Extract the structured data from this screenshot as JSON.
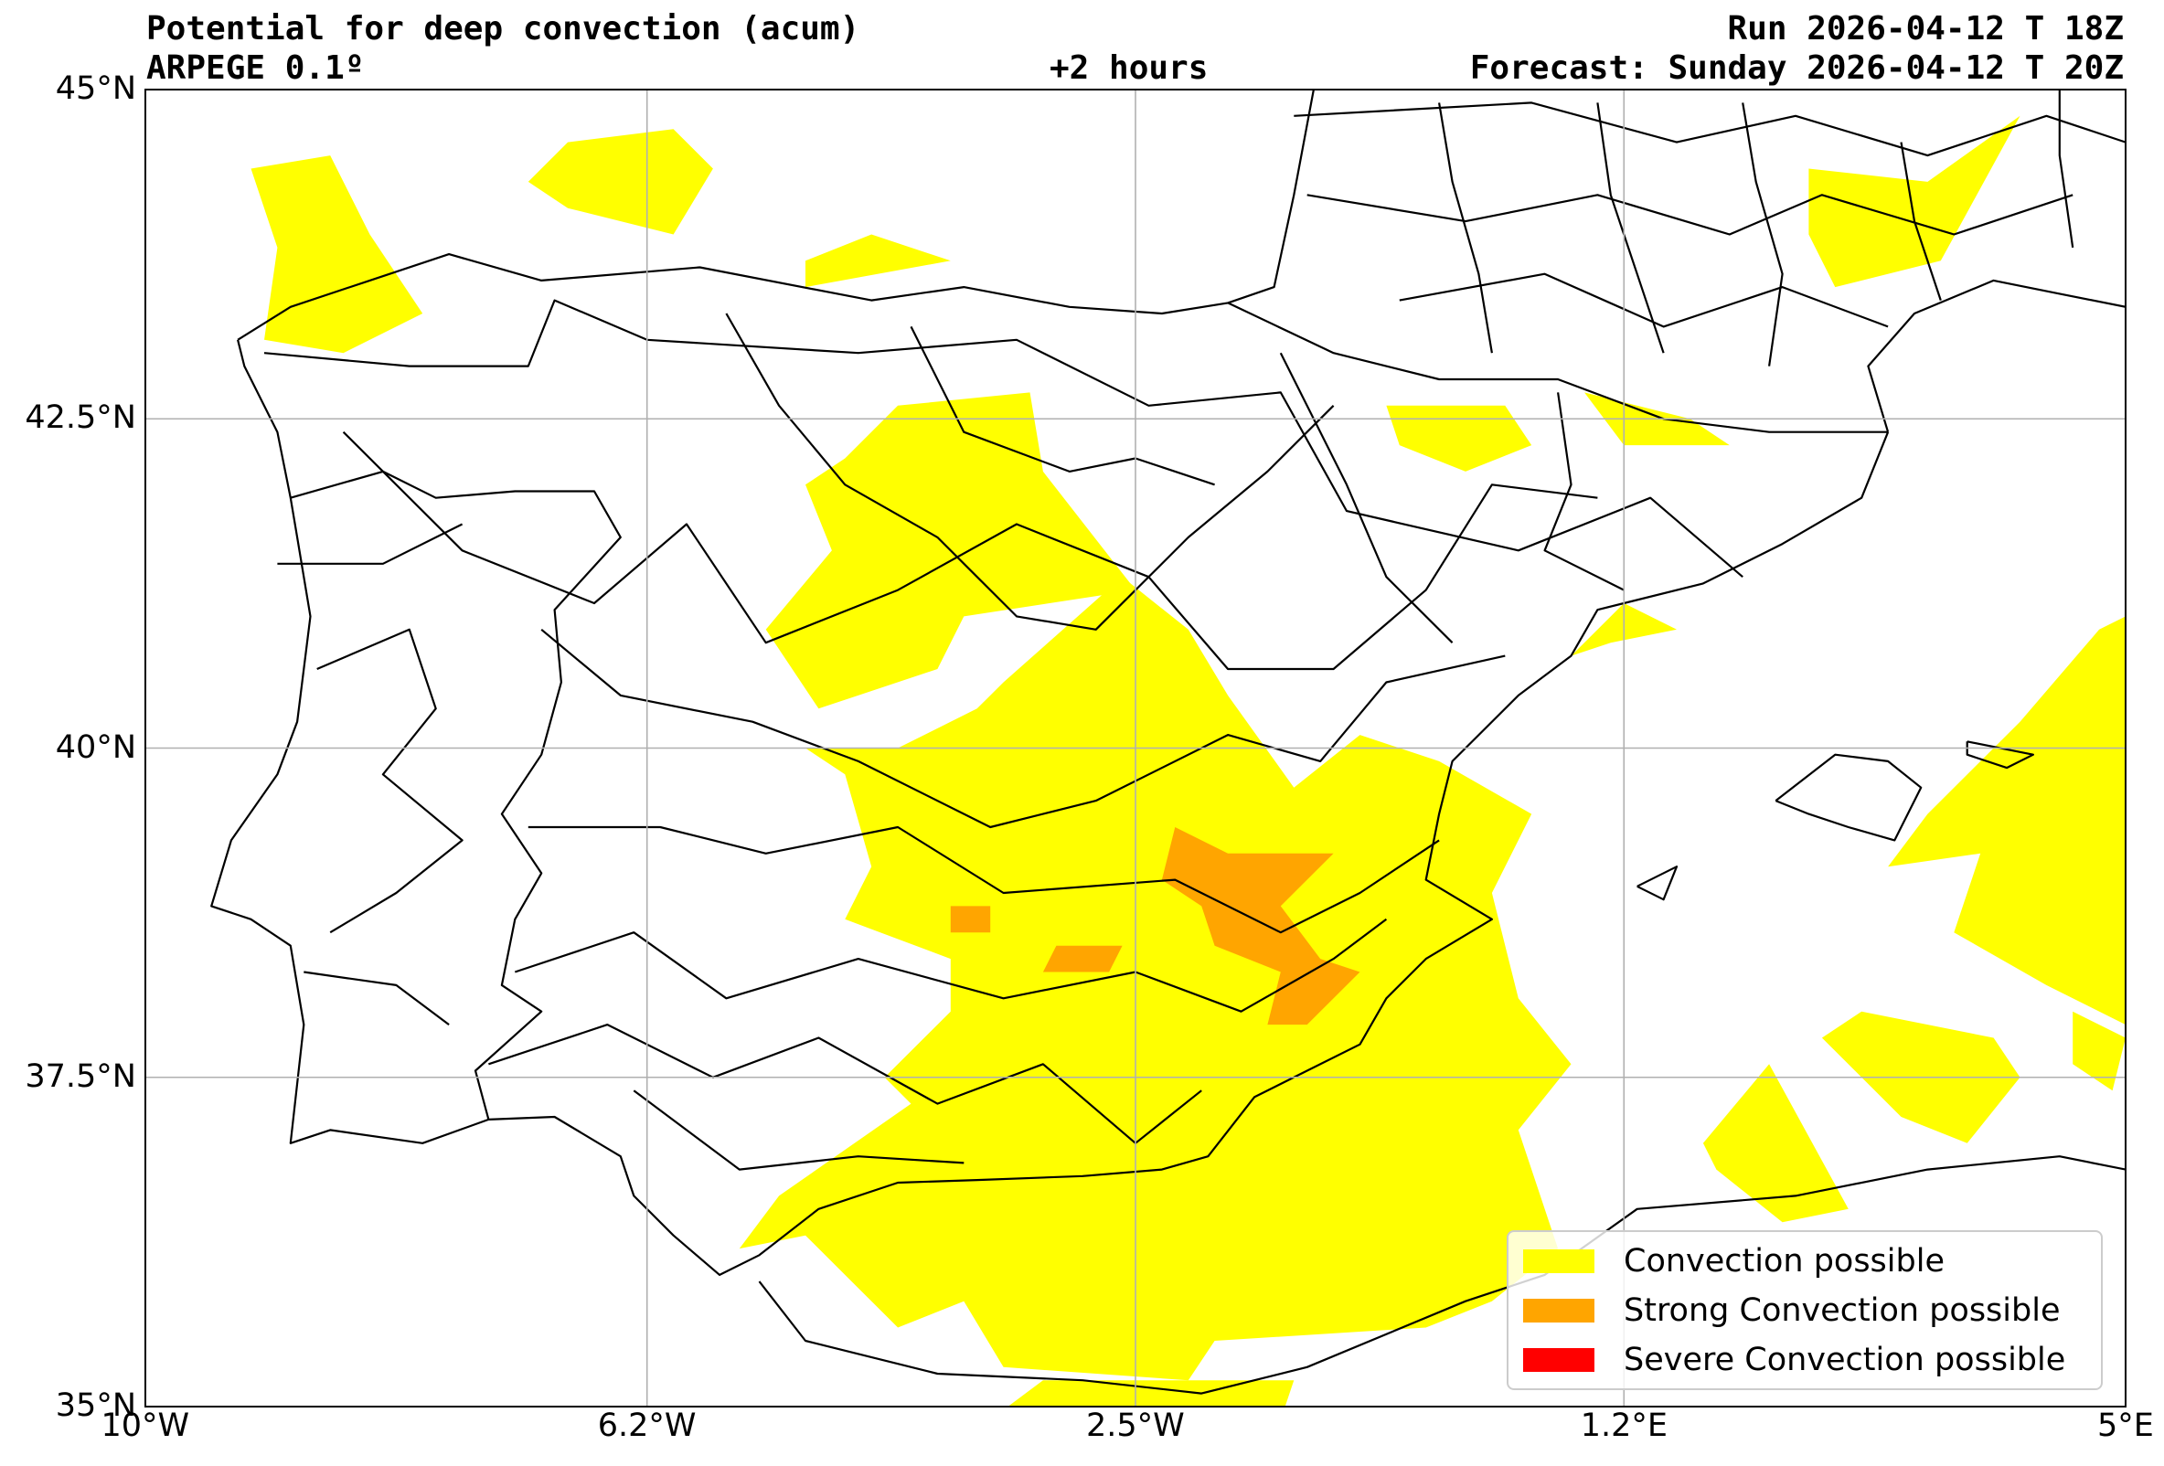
{
  "header": {
    "title": "Potential for deep convection (acum)",
    "model": "ARPEGE 0.1º",
    "lead_time": "+2 hours",
    "run": "Run 2026-04-12 T 18Z",
    "forecast": "Forecast: Sunday 2026-04-12 T 20Z"
  },
  "map": {
    "lon_range": [
      -10,
      5
    ],
    "lat_range": [
      35,
      45
    ],
    "x_ticks": [
      {
        "value": -10,
        "label": "10°W"
      },
      {
        "value": -6.2,
        "label": "6.2°W"
      },
      {
        "value": -2.5,
        "label": "2.5°W"
      },
      {
        "value": 1.2,
        "label": "1.2°E"
      },
      {
        "value": 5,
        "label": "5°E"
      }
    ],
    "y_ticks": [
      {
        "value": 45,
        "label": "45°N"
      },
      {
        "value": 42.5,
        "label": "42.5°N"
      },
      {
        "value": 40,
        "label": "40°N"
      },
      {
        "value": 37.5,
        "label": "37.5°N"
      },
      {
        "value": 35,
        "label": "35°N"
      }
    ],
    "grid": true,
    "colors": {
      "possible": "#ffff00",
      "strong": "#ffa500",
      "severe": "#ff0000",
      "coast": "#000000",
      "grid": "#b0b0b0"
    }
  },
  "legend": {
    "position": "lower-right",
    "items": [
      {
        "label": "Convection possible",
        "color": "#ffff00"
      },
      {
        "label": "Strong Convection possible",
        "color": "#ffa500"
      },
      {
        "label": "Severe Convection possible",
        "color": "#ff0000"
      }
    ]
  },
  "convection_areas": {
    "possible": [
      [
        [
          -9.2,
          44.4
        ],
        [
          -8.6,
          44.5
        ],
        [
          -8.3,
          43.9
        ],
        [
          -7.9,
          43.3
        ],
        [
          -8.5,
          43.0
        ],
        [
          -9.1,
          43.1
        ],
        [
          -9.0,
          43.8
        ]
      ],
      [
        [
          -6.8,
          44.6
        ],
        [
          -6.0,
          44.7
        ],
        [
          -5.7,
          44.4
        ],
        [
          -6.0,
          43.9
        ],
        [
          -6.8,
          44.1
        ],
        [
          -7.1,
          44.3
        ]
      ],
      [
        [
          -5.0,
          43.7
        ],
        [
          -4.5,
          43.9
        ],
        [
          -3.9,
          43.7
        ],
        [
          -5.0,
          43.5
        ]
      ],
      [
        [
          -4.3,
          42.6
        ],
        [
          -3.3,
          42.7
        ],
        [
          -3.2,
          42.1
        ],
        [
          -2.5,
          41.2
        ],
        [
          -3.8,
          41.0
        ],
        [
          -4.0,
          40.6
        ],
        [
          -4.9,
          40.3
        ],
        [
          -5.3,
          40.9
        ],
        [
          -4.8,
          41.5
        ],
        [
          -5.0,
          42.0
        ],
        [
          -4.7,
          42.2
        ]
      ],
      [
        [
          -3.5,
          40.5
        ],
        [
          -2.6,
          41.3
        ],
        [
          -2.1,
          40.9
        ],
        [
          -1.8,
          40.4
        ],
        [
          -1.3,
          39.7
        ],
        [
          -0.8,
          40.1
        ],
        [
          -0.2,
          39.9
        ],
        [
          0.5,
          39.5
        ],
        [
          0.2,
          38.9
        ],
        [
          0.4,
          38.1
        ],
        [
          0.8,
          37.6
        ],
        [
          0.4,
          37.1
        ],
        [
          0.7,
          36.2
        ],
        [
          0.2,
          35.8
        ],
        [
          -0.3,
          35.6
        ],
        [
          -1.9,
          35.5
        ],
        [
          -2.1,
          35.2
        ],
        [
          -3.5,
          35.3
        ],
        [
          -3.8,
          35.8
        ],
        [
          -4.3,
          35.6
        ],
        [
          -5.0,
          36.3
        ],
        [
          -5.5,
          36.2
        ],
        [
          -5.2,
          36.6
        ],
        [
          -4.2,
          37.3
        ],
        [
          -4.4,
          37.5
        ],
        [
          -3.9,
          38.0
        ],
        [
          -3.9,
          38.4
        ],
        [
          -4.7,
          38.7
        ],
        [
          -4.5,
          39.1
        ],
        [
          -4.7,
          39.8
        ],
        [
          -5.0,
          40.0
        ],
        [
          -4.3,
          40.0
        ],
        [
          -3.7,
          40.3
        ]
      ],
      [
        [
          -0.6,
          42.6
        ],
        [
          0.3,
          42.6
        ],
        [
          0.5,
          42.3
        ],
        [
          0.0,
          42.1
        ],
        [
          -0.5,
          42.3
        ]
      ],
      [
        [
          0.9,
          42.7
        ],
        [
          1.7,
          42.5
        ],
        [
          2.0,
          42.3
        ],
        [
          1.2,
          42.3
        ]
      ],
      [
        [
          1.2,
          41.1
        ],
        [
          1.6,
          40.9
        ],
        [
          1.1,
          40.8
        ],
        [
          0.8,
          40.7
        ]
      ],
      [
        [
          2.6,
          44.4
        ],
        [
          3.5,
          44.3
        ],
        [
          4.2,
          44.8
        ],
        [
          3.6,
          43.7
        ],
        [
          2.8,
          43.5
        ],
        [
          2.6,
          43.9
        ]
      ],
      [
        [
          3.5,
          39.5
        ],
        [
          4.2,
          40.2
        ],
        [
          4.8,
          40.9
        ],
        [
          5.0,
          41.0
        ],
        [
          5.0,
          37.9
        ],
        [
          4.4,
          38.2
        ],
        [
          3.7,
          38.6
        ],
        [
          3.9,
          39.2
        ],
        [
          3.2,
          39.1
        ]
      ],
      [
        [
          2.7,
          37.8
        ],
        [
          3.3,
          37.2
        ],
        [
          3.8,
          37.0
        ],
        [
          4.2,
          37.5
        ],
        [
          4.0,
          37.8
        ],
        [
          3.0,
          38.0
        ]
      ],
      [
        [
          1.8,
          37.0
        ],
        [
          2.3,
          37.6
        ],
        [
          2.9,
          36.5
        ],
        [
          2.4,
          36.4
        ],
        [
          1.9,
          36.8
        ]
      ],
      [
        [
          4.9,
          37.4
        ],
        [
          4.6,
          37.6
        ],
        [
          4.6,
          38.0
        ],
        [
          5.0,
          37.8
        ]
      ],
      [
        [
          -3.6,
          34.9
        ],
        [
          -1.4,
          34.9
        ],
        [
          -1.3,
          35.2
        ],
        [
          -3.2,
          35.2
        ]
      ]
    ],
    "strong": [
      [
        [
          -1.6,
          39.2
        ],
        [
          -1.0,
          39.2
        ],
        [
          -1.4,
          38.8
        ],
        [
          -1.1,
          38.4
        ],
        [
          -0.8,
          38.3
        ],
        [
          -1.2,
          37.9
        ],
        [
          -1.5,
          37.9
        ],
        [
          -1.4,
          38.3
        ],
        [
          -1.9,
          38.5
        ],
        [
          -2.0,
          38.8
        ],
        [
          -2.3,
          39.0
        ],
        [
          -2.2,
          39.4
        ],
        [
          -1.8,
          39.2
        ]
      ],
      [
        [
          -3.1,
          38.5
        ],
        [
          -2.6,
          38.5
        ],
        [
          -2.7,
          38.3
        ],
        [
          -3.2,
          38.3
        ]
      ],
      [
        [
          -3.9,
          38.8
        ],
        [
          -3.6,
          38.8
        ],
        [
          -3.6,
          38.6
        ],
        [
          -3.9,
          38.6
        ]
      ]
    ],
    "severe": []
  }
}
